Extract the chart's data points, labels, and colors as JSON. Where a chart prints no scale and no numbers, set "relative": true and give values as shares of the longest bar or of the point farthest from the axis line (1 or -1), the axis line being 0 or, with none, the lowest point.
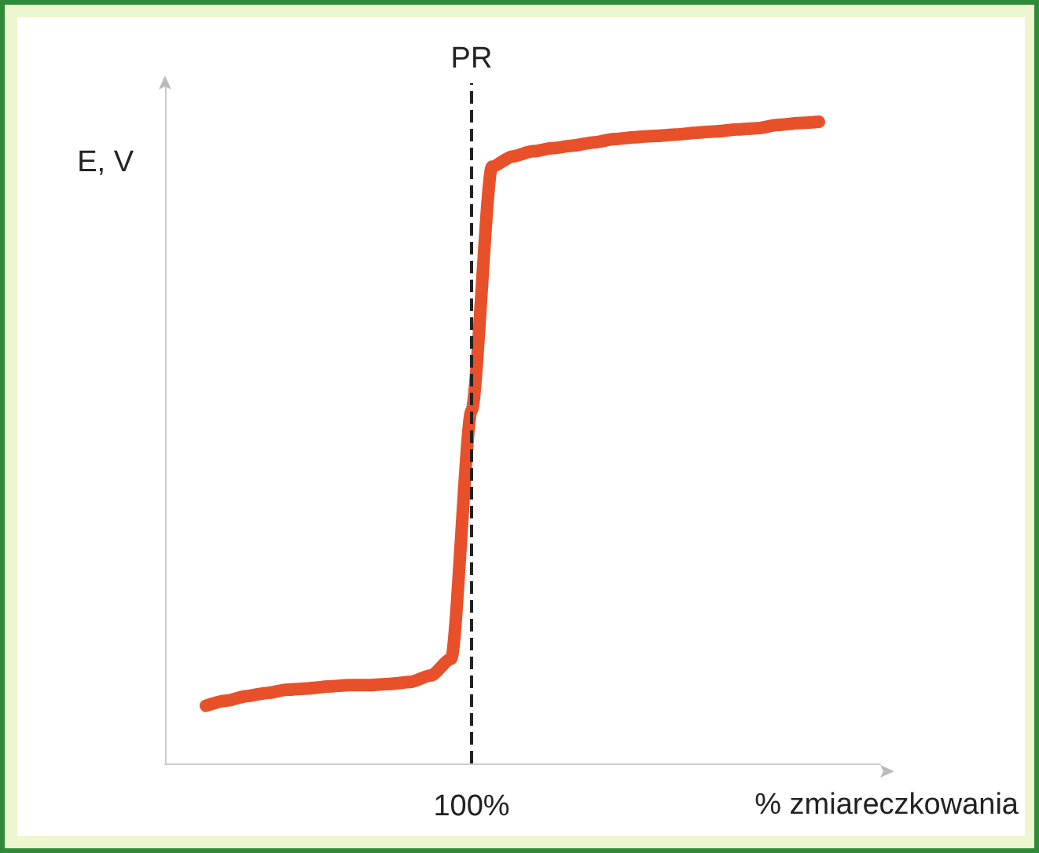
{
  "chart_data": {
    "type": "line",
    "relative": true,
    "xlabel": "% zmiareczkowania",
    "ylabel": "E, V",
    "categories": [
      null,
      null,
      null,
      null,
      null,
      null,
      null,
      null,
      null,
      null,
      null,
      null,
      null,
      null,
      null,
      null,
      null,
      null,
      null,
      null,
      null,
      null,
      null,
      null,
      null,
      null,
      null,
      null,
      null,
      null,
      null,
      null,
      null,
      null,
      null,
      null
    ],
    "series": [
      {
        "color": "#e8502a",
        "values": [
          null,
          null,
          0.09,
          0.098,
          0.105,
          0.11,
          0.115,
          0.117,
          0.12,
          0.122,
          0.122,
          0.124,
          0.127,
          0.137,
          0.163,
          0.55,
          0.93,
          0.946,
          0.954,
          0.959,
          0.963,
          0.968,
          0.973,
          0.976,
          0.978,
          0.98,
          0.983,
          0.985,
          0.988,
          0.99,
          0.995,
          0.998,
          1.0,
          null,
          null,
          null
        ]
      }
    ],
    "annotations": [
      "PR",
      "100%"
    ],
    "line_style": "solid",
    "grid": false
  }
}
